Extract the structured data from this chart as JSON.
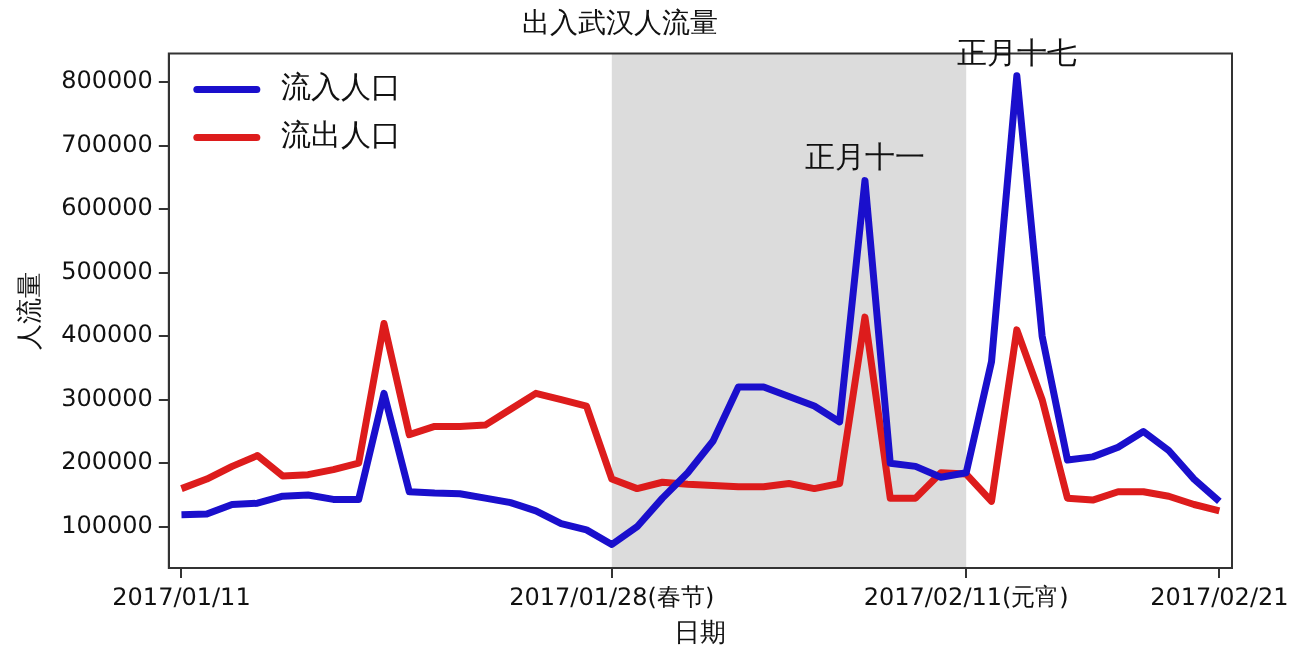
{
  "chart_data": {
    "type": "line",
    "title": "出入武汉人流量",
    "xlabel": "日期",
    "ylabel": "人流量",
    "categories": [
      "2017/01/11",
      null,
      null,
      null,
      null,
      null,
      null,
      null,
      null,
      null,
      null,
      null,
      null,
      null,
      null,
      null,
      null,
      "2017/01/28(春节)",
      null,
      null,
      null,
      null,
      null,
      null,
      null,
      null,
      null,
      null,
      null,
      null,
      null,
      "2017/02/11(元宵)",
      null,
      null,
      null,
      null,
      null,
      null,
      null,
      null,
      null,
      "2017/02/21"
    ],
    "series": [
      {
        "name": "流入人口",
        "color": "#1a0fcc",
        "values": [
          119000,
          120000,
          135000,
          137000,
          148000,
          150000,
          143000,
          143000,
          310000,
          155000,
          153000,
          152000,
          145000,
          138000,
          125000,
          105000,
          95000,
          72000,
          100000,
          145000,
          185000,
          235000,
          320000,
          320000,
          305000,
          290000,
          265000,
          645000,
          200000,
          195000,
          178000,
          185000,
          360000,
          810000,
          400000,
          205000,
          210000,
          225000,
          250000,
          220000,
          175000,
          140000
        ]
      },
      {
        "name": "流出人口",
        "color": "#dd1c1c",
        "values": [
          160000,
          175000,
          195000,
          212000,
          180000,
          182000,
          190000,
          200000,
          420000,
          245000,
          258000,
          258000,
          260000,
          285000,
          310000,
          300000,
          290000,
          175000,
          160000,
          170000,
          167000,
          165000,
          163000,
          163000,
          168000,
          160000,
          168000,
          430000,
          145000,
          145000,
          185000,
          183000,
          140000,
          410000,
          300000,
          145000,
          142000,
          155000,
          155000,
          148000,
          135000,
          125000
        ]
      }
    ],
    "ylim": [
      35000,
      845000
    ],
    "yticks": [
      100000,
      200000,
      300000,
      400000,
      500000,
      600000,
      700000,
      800000
    ],
    "bands": [
      {
        "axis": "x",
        "from": "2017/01/28(春节)",
        "to": "2017/02/11(元宵)",
        "color": "#dcdcdc"
      }
    ],
    "annotations": [
      {
        "text": "正月十一",
        "y": 645000
      },
      {
        "text": "正月十七",
        "y": 810000
      }
    ],
    "legend": "top left",
    "grid": false,
    "line_style": "solid",
    "marker": "none"
  }
}
